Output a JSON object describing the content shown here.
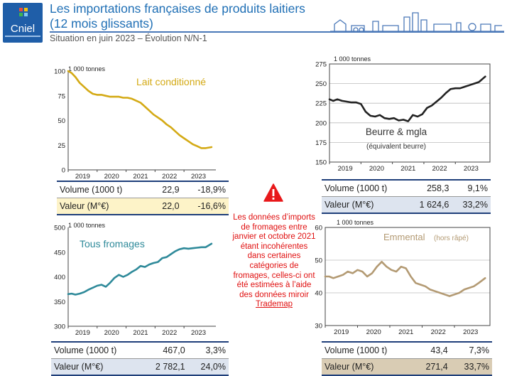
{
  "header": {
    "logo_text": "Cniel",
    "title_line1": "Les importations françaises de produits laitiers",
    "title_line2": "(12 mois glissants)",
    "subtitle": "Situation en juin 2023 – Évolution N/N-1"
  },
  "note": {
    "icon": "warning-icon",
    "text": "Les données d’imports de fromages entre janvier et octobre 2021 étant incohérentes dans certaines catégories de fromages, celles-ci ont été estimées à l’aide des données miroir",
    "link_text": "Trademap"
  },
  "chart_data": [
    {
      "id": "lait",
      "type": "line",
      "unit": "1 000 tonnes",
      "label": "Lait conditionné",
      "label_sub": "",
      "color": "#d4aa15",
      "ylim": [
        0,
        100
      ],
      "yticks": [
        0,
        25,
        50,
        75,
        100
      ],
      "xlim": [
        2018.5,
        2023.6
      ],
      "xticks": [
        "2019",
        "2020",
        "2021",
        "2022",
        "2023"
      ],
      "x": [
        2018.5,
        2018.62,
        2018.75,
        2018.9,
        2019.05,
        2019.2,
        2019.35,
        2019.5,
        2019.65,
        2019.8,
        2019.95,
        2020.1,
        2020.25,
        2020.4,
        2020.55,
        2020.7,
        2020.85,
        2021.0,
        2021.15,
        2021.3,
        2021.45,
        2021.6,
        2021.75,
        2021.9,
        2022.05,
        2022.2,
        2022.35,
        2022.5,
        2022.65,
        2022.8,
        2022.95,
        2023.1,
        2023.25,
        2023.45
      ],
      "y": [
        100,
        98,
        94,
        88,
        84,
        80,
        77,
        76,
        76,
        75,
        74,
        74,
        74,
        73,
        73,
        72,
        70,
        68,
        64,
        60,
        56,
        53,
        50,
        46,
        43,
        39,
        35,
        32,
        29,
        26,
        24,
        22,
        22,
        23
      ],
      "stats": {
        "volume_label": "Volume (1000 t)",
        "volume": "22,9",
        "volume_pct": "-18,9%",
        "valeur_label": "Valeur (M°€)",
        "valeur": "22,0",
        "valeur_pct": "-16,6%"
      },
      "valeur_bg": "#fdf3c8"
    },
    {
      "id": "beurre",
      "type": "line",
      "unit": "1 000 tonnes",
      "label": "Beurre & mgla",
      "label_sub": "(équivalent beurre)",
      "color": "#222222",
      "ylim": [
        150,
        275
      ],
      "yticks": [
        150,
        175,
        200,
        225,
        250,
        275
      ],
      "xlim": [
        2018.5,
        2023.6
      ],
      "xticks": [
        "2019",
        "2020",
        "2021",
        "2022",
        "2023"
      ],
      "x": [
        2018.5,
        2018.62,
        2018.75,
        2018.9,
        2019.05,
        2019.2,
        2019.35,
        2019.5,
        2019.65,
        2019.8,
        2019.95,
        2020.1,
        2020.25,
        2020.4,
        2020.55,
        2020.7,
        2020.85,
        2021.0,
        2021.15,
        2021.3,
        2021.45,
        2021.6,
        2021.75,
        2021.9,
        2022.05,
        2022.2,
        2022.35,
        2022.5,
        2022.65,
        2022.8,
        2022.95,
        2023.1,
        2023.25,
        2023.45
      ],
      "y": [
        230,
        228,
        230,
        228,
        227,
        226,
        226,
        224,
        214,
        209,
        208,
        210,
        206,
        205,
        206,
        203,
        204,
        202,
        210,
        208,
        211,
        219,
        222,
        227,
        232,
        238,
        243,
        244,
        244,
        246,
        248,
        250,
        252,
        259
      ],
      "stats": {
        "volume_label": "Volume (1000 t)",
        "volume": "258,3",
        "volume_pct": "9,1%",
        "valeur_label": "Valeur (M°€)",
        "valeur": "1 624,6",
        "valeur_pct": "33,2%"
      },
      "valeur_bg": "#dde4ef"
    },
    {
      "id": "fromages",
      "type": "line",
      "unit": "1 000 tonnes",
      "label": "Tous fromages",
      "label_sub": "",
      "color": "#2f8a9a",
      "ylim": [
        300,
        500
      ],
      "yticks": [
        300,
        350,
        400,
        450,
        500
      ],
      "xlim": [
        2018.5,
        2023.6
      ],
      "xticks": [
        "2019",
        "2020",
        "2021",
        "2022",
        "2023"
      ],
      "x": [
        2018.5,
        2018.62,
        2018.75,
        2018.9,
        2019.05,
        2019.2,
        2019.35,
        2019.5,
        2019.65,
        2019.8,
        2019.95,
        2020.1,
        2020.25,
        2020.4,
        2020.55,
        2020.7,
        2020.85,
        2021.0,
        2021.15,
        2021.3,
        2021.45,
        2021.6,
        2021.75,
        2021.9,
        2022.05,
        2022.2,
        2022.35,
        2022.5,
        2022.65,
        2022.8,
        2022.95,
        2023.1,
        2023.25,
        2023.45
      ],
      "y": [
        365,
        366,
        364,
        366,
        369,
        374,
        378,
        382,
        384,
        380,
        388,
        398,
        404,
        400,
        404,
        410,
        415,
        422,
        420,
        425,
        428,
        430,
        438,
        440,
        446,
        452,
        456,
        458,
        457,
        458,
        459,
        460,
        460,
        467
      ],
      "stats": {
        "volume_label": "Volume (1000 t)",
        "volume": "467,0",
        "volume_pct": "3,3%",
        "valeur_label": "Valeur (M°€)",
        "valeur": "2 782,1",
        "valeur_pct": "24,0%"
      },
      "valeur_bg": "#dde4ef"
    },
    {
      "id": "emmental",
      "type": "line",
      "unit": "1 000 tonnes",
      "label": "Emmental",
      "label_sub": "(hors râpé)",
      "color": "#b39a73",
      "ylim": [
        30,
        60
      ],
      "yticks": [
        30,
        40,
        50,
        60
      ],
      "xlim": [
        2018.5,
        2023.6
      ],
      "xticks": [
        "2019",
        "2020",
        "2021",
        "2022",
        "2023"
      ],
      "x": [
        2018.5,
        2018.62,
        2018.75,
        2018.9,
        2019.05,
        2019.2,
        2019.35,
        2019.5,
        2019.65,
        2019.8,
        2019.95,
        2020.1,
        2020.25,
        2020.4,
        2020.55,
        2020.7,
        2020.85,
        2021.0,
        2021.15,
        2021.3,
        2021.45,
        2021.6,
        2021.75,
        2021.9,
        2022.05,
        2022.2,
        2022.35,
        2022.5,
        2022.65,
        2022.8,
        2022.95,
        2023.1,
        2023.25,
        2023.45
      ],
      "y": [
        45,
        45,
        44.5,
        45,
        45.5,
        46.5,
        46,
        47,
        46.5,
        45,
        46,
        48,
        49.5,
        48,
        47,
        46.5,
        48,
        47.5,
        45,
        43,
        42.5,
        42,
        41,
        40.5,
        40,
        39.5,
        39,
        39.5,
        40,
        41,
        41.5,
        42,
        43,
        44.5
      ],
      "stats": {
        "volume_label": "Volume (1000 t)",
        "volume": "43,4",
        "volume_pct": "7,3%",
        "valeur_label": "Valeur (M°€)",
        "valeur": "271,4",
        "valeur_pct": "33,7%"
      },
      "valeur_bg": "#d9ccb4"
    }
  ]
}
